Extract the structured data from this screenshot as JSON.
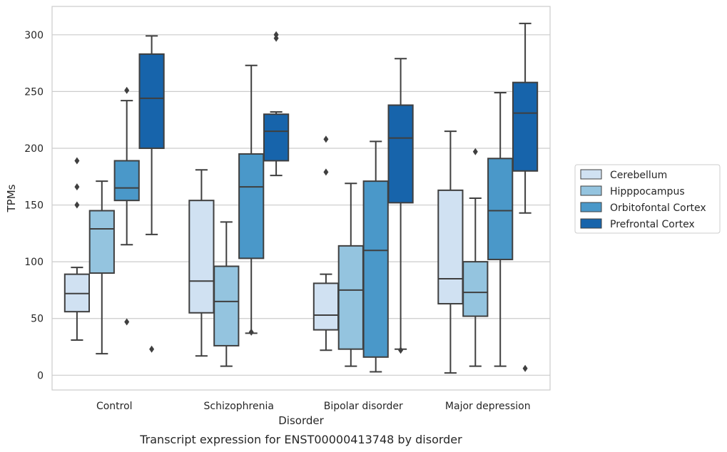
{
  "chart_data": {
    "type": "box",
    "title": "",
    "caption": "Transcript expression for ENST00000413748 by disorder",
    "xlabel": "Disorder",
    "ylabel": "TPMs",
    "ylim": [
      -13,
      325
    ],
    "yticks": [
      0,
      50,
      100,
      150,
      200,
      250,
      300
    ],
    "grid": "horizontal",
    "legend_position": "right",
    "categories": [
      "Control",
      "Schizophrenia",
      "Bipolar disorder",
      "Major depression"
    ],
    "series": [
      {
        "name": "Cerebellum",
        "color": "#d0e1f2",
        "boxes": [
          {
            "whisker_low": 31,
            "q1": 56,
            "median": 72,
            "q3": 89,
            "whisker_high": 95,
            "outliers": [
              150,
              166,
              189
            ]
          },
          {
            "whisker_low": 17,
            "q1": 55,
            "median": 83,
            "q3": 154,
            "whisker_high": 181,
            "outliers": []
          },
          {
            "whisker_low": 22,
            "q1": 40,
            "median": 53,
            "q3": 81,
            "whisker_high": 89,
            "outliers": [
              179,
              208
            ]
          },
          {
            "whisker_low": 2,
            "q1": 63,
            "median": 85,
            "q3": 163,
            "whisker_high": 215,
            "outliers": []
          }
        ]
      },
      {
        "name": "Hipppocampus",
        "color": "#94c4df",
        "boxes": [
          {
            "whisker_low": 19,
            "q1": 90,
            "median": 129,
            "q3": 145,
            "whisker_high": 171,
            "outliers": []
          },
          {
            "whisker_low": 8,
            "q1": 26,
            "median": 65,
            "q3": 96,
            "whisker_high": 135,
            "outliers": []
          },
          {
            "whisker_low": 8,
            "q1": 23,
            "median": 75,
            "q3": 114,
            "whisker_high": 169,
            "outliers": []
          },
          {
            "whisker_low": 8,
            "q1": 52,
            "median": 73,
            "q3": 100,
            "whisker_high": 156,
            "outliers": [
              197
            ]
          }
        ]
      },
      {
        "name": "Orbitofontal Cortex",
        "color": "#4a98c9",
        "boxes": [
          {
            "whisker_low": 115,
            "q1": 154,
            "median": 165,
            "q3": 189,
            "whisker_high": 242,
            "outliers": [
              47,
              251
            ]
          },
          {
            "whisker_low": 37,
            "q1": 103,
            "median": 166,
            "q3": 195,
            "whisker_high": 273,
            "outliers": [
              38
            ]
          },
          {
            "whisker_low": 3,
            "q1": 16,
            "median": 110,
            "q3": 171,
            "whisker_high": 206,
            "outliers": []
          },
          {
            "whisker_low": 8,
            "q1": 102,
            "median": 145,
            "q3": 191,
            "whisker_high": 249,
            "outliers": []
          }
        ]
      },
      {
        "name": "Prefrontal Cortex",
        "color": "#1764ab",
        "boxes": [
          {
            "whisker_low": 124,
            "q1": 200,
            "median": 244,
            "q3": 283,
            "whisker_high": 299,
            "outliers": [
              23
            ]
          },
          {
            "whisker_low": 176,
            "q1": 189,
            "median": 215,
            "q3": 230,
            "whisker_high": 232,
            "outliers": [
              297,
              300
            ]
          },
          {
            "whisker_low": 23,
            "q1": 152,
            "median": 209,
            "q3": 238,
            "whisker_high": 279,
            "outliers": [
              22
            ]
          },
          {
            "whisker_low": 143,
            "q1": 180,
            "median": 231,
            "q3": 258,
            "whisker_high": 310,
            "outliers": [
              6
            ]
          }
        ]
      }
    ]
  }
}
